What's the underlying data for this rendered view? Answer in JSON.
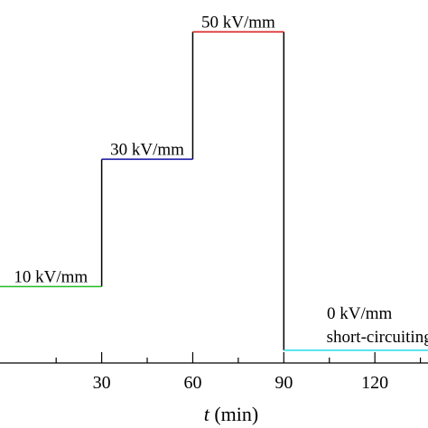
{
  "chart_data": {
    "type": "line",
    "xlabel_italic": "t",
    "xlabel_rest": " (min)",
    "xlim": [
      -3.5,
      137.5
    ],
    "ylim": [
      -2,
      55
    ],
    "x_ticks": [
      30,
      60,
      90,
      120
    ],
    "x_tick_labels": [
      "30",
      "60",
      "90",
      "120"
    ],
    "x_minor_ticks": [
      15,
      45,
      75,
      105,
      135
    ],
    "segments": [
      {
        "x": [
          -3.5,
          30
        ],
        "y": [
          10,
          10
        ],
        "color": "#22bb22",
        "label": "10 kV/mm"
      },
      {
        "x": [
          30,
          60
        ],
        "y": [
          30,
          30
        ],
        "color": "#1a1aa6",
        "label": "30 kV/mm"
      },
      {
        "x": [
          60,
          90
        ],
        "y": [
          50,
          50
        ],
        "color": "#dd2222",
        "label": "50 kV/mm"
      },
      {
        "x": [
          90,
          137.5
        ],
        "y": [
          0,
          0
        ],
        "color": "#33ddee",
        "label": "0 kV/mm",
        "label2": "short-circuiting"
      }
    ],
    "step_color": "#000000"
  }
}
